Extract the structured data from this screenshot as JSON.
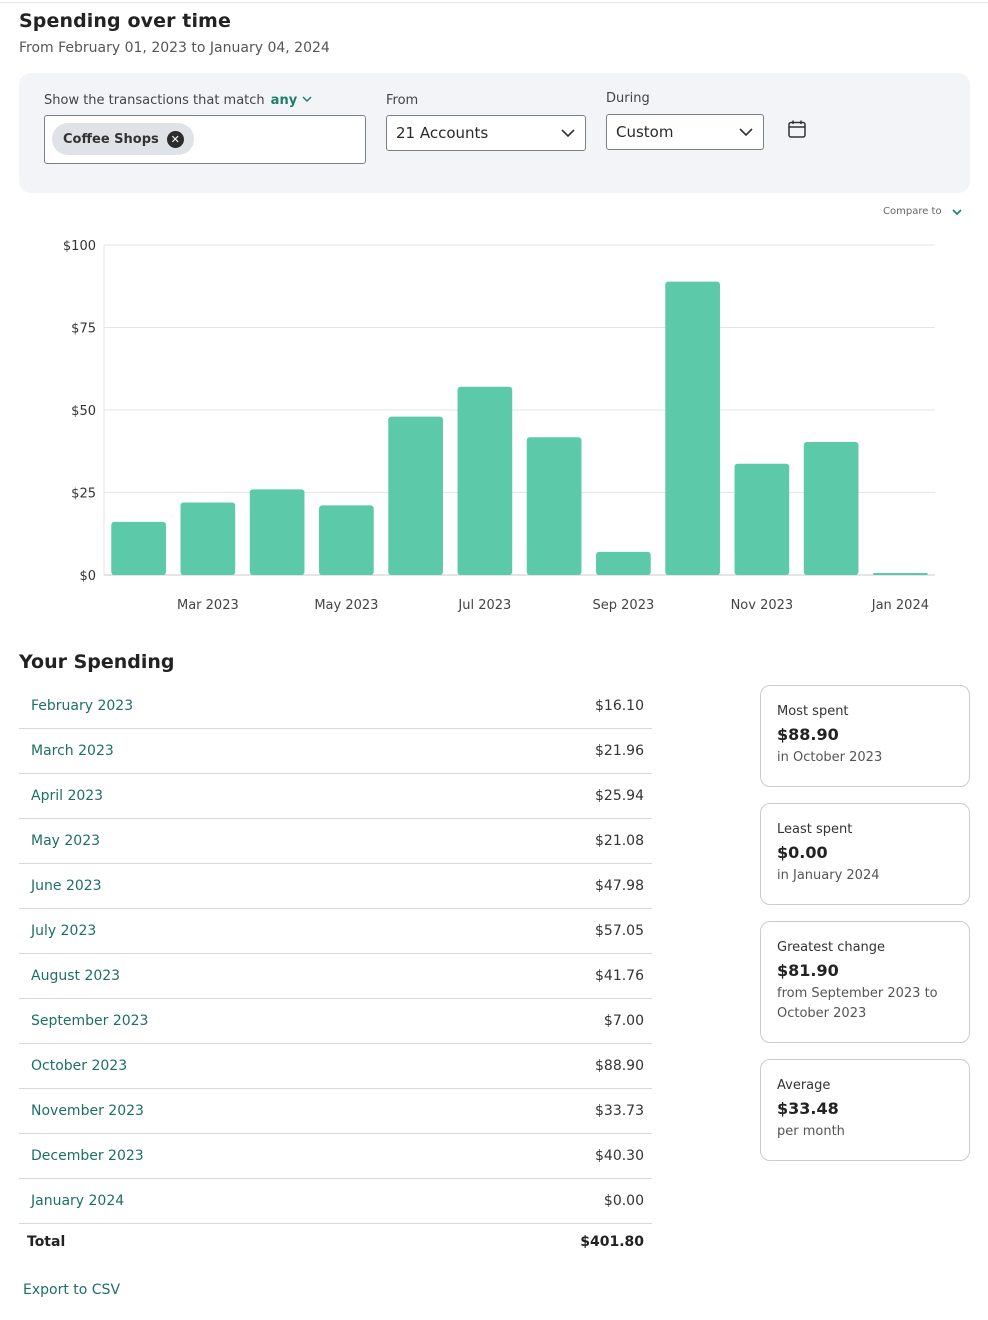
{
  "header": {
    "title": "Spending over time",
    "subtitle": "From February 01, 2023 to January 04, 2024"
  },
  "filters": {
    "match_label": "Show the transactions that match",
    "match_mode": "any",
    "tags": [
      "Coffee Shops"
    ],
    "from_label": "From",
    "from_value": "21 Accounts",
    "during_label": "During",
    "during_value": "Custom"
  },
  "compare": {
    "label": "Compare to"
  },
  "chart_data": {
    "type": "bar",
    "title": "",
    "xlabel": "",
    "ylabel": "",
    "ylim": [
      0,
      100
    ],
    "y_ticks": [
      "$0",
      "$25",
      "$50",
      "$75",
      "$100"
    ],
    "y_tick_values": [
      0,
      25,
      50,
      75,
      100
    ],
    "categories": [
      "Feb 2023",
      "Mar 2023",
      "Apr 2023",
      "May 2023",
      "Jun 2023",
      "Jul 2023",
      "Aug 2023",
      "Sep 2023",
      "Oct 2023",
      "Nov 2023",
      "Dec 2023",
      "Jan 2024"
    ],
    "x_tick_labels": [
      "",
      "Mar 2023",
      "",
      "May 2023",
      "",
      "Jul 2023",
      "",
      "Sep 2023",
      "",
      "Nov 2023",
      "",
      "Jan 2024"
    ],
    "values": [
      16.1,
      21.96,
      25.94,
      21.08,
      47.98,
      57.05,
      41.76,
      7.0,
      88.9,
      33.73,
      40.3,
      0.0
    ],
    "bar_color": "#5ccaa8"
  },
  "spending": {
    "title": "Your Spending",
    "rows": [
      {
        "month": "February 2023",
        "amount": "$16.10"
      },
      {
        "month": "March 2023",
        "amount": "$21.96"
      },
      {
        "month": "April 2023",
        "amount": "$25.94"
      },
      {
        "month": "May 2023",
        "amount": "$21.08"
      },
      {
        "month": "June 2023",
        "amount": "$47.98"
      },
      {
        "month": "July 2023",
        "amount": "$57.05"
      },
      {
        "month": "August 2023",
        "amount": "$41.76"
      },
      {
        "month": "September 2023",
        "amount": "$7.00"
      },
      {
        "month": "October 2023",
        "amount": "$88.90"
      },
      {
        "month": "November 2023",
        "amount": "$33.73"
      },
      {
        "month": "December 2023",
        "amount": "$40.30"
      },
      {
        "month": "January 2024",
        "amount": "$0.00"
      }
    ],
    "total_label": "Total",
    "total_value": "$401.80",
    "export_label": "Export to CSV"
  },
  "stats": {
    "most": {
      "label": "Most spent",
      "value": "$88.90",
      "detail": "in October 2023"
    },
    "least": {
      "label": "Least spent",
      "value": "$0.00",
      "detail": "in January 2024"
    },
    "change": {
      "label": "Greatest change",
      "value": "$81.90",
      "detail": "from September 2023 to October 2023"
    },
    "average": {
      "label": "Average",
      "value": "$33.48",
      "detail": "per month"
    }
  },
  "colors": {
    "accent": "#1d7d6e",
    "bar": "#5ccaa8",
    "panel": "#f2f4f8"
  }
}
